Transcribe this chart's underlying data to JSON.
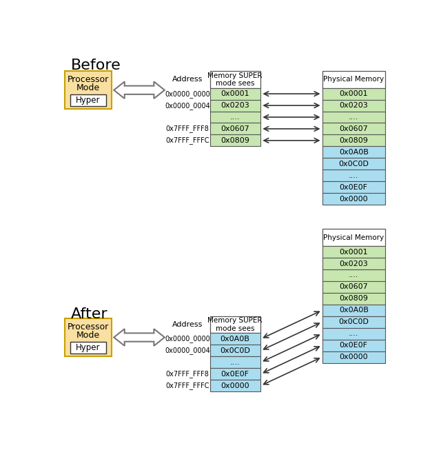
{
  "title_before": "Before",
  "title_after": "After",
  "bg": "#ffffff",
  "proc_fill": "#f9dfa0",
  "proc_edge": "#c8a000",
  "hyper_fill": "#ffffff",
  "hyper_edge": "#333333",
  "green": "#c8e6b0",
  "blue": "#aaddf0",
  "white": "#ffffff",
  "edge": "#555555",
  "before_mem": [
    "0x0001",
    "0x0203",
    "....",
    "0x0607",
    "0x0809"
  ],
  "before_addr": [
    "0x0000_0000",
    "0x0000_0004",
    "",
    "0x7FFF_FFF8",
    "0x7FFF_FFFC"
  ],
  "before_phys_green": [
    "0x0001",
    "0x0203",
    "....",
    "0x0607",
    "0x0809"
  ],
  "before_phys_blue": [
    "0x0A0B",
    "0x0C0D",
    "....",
    "0x0E0F",
    "0x0000"
  ],
  "after_mem": [
    "0x0A0B",
    "0x0C0D",
    "....",
    "0x0E0F",
    "0x0000"
  ],
  "after_addr": [
    "0x0000_0000",
    "0x0000_0004",
    "",
    "0x7FFF_FFF8",
    "0x7FFF_FFFC"
  ],
  "after_phys_green": [
    "0x0001",
    "0x0203",
    "....",
    "0x0607",
    "0x0809"
  ],
  "after_phys_blue": [
    "0x0A0B",
    "0x0C0D",
    "....",
    "0x0E0F",
    "0x0000"
  ],
  "mem_header": "Memory SUPER\nmode sees",
  "phys_header": "Physical Memory",
  "addr_label": "Address"
}
